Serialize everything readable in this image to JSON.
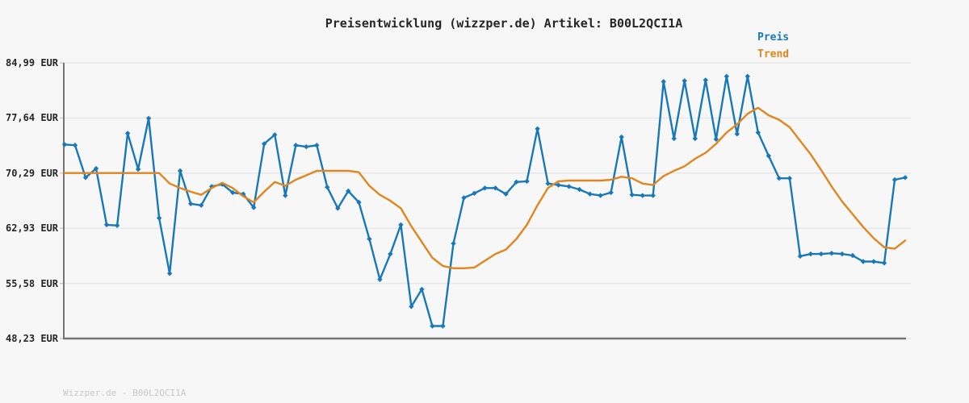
{
  "title": "Preisentwicklung (wizzper.de) Artikel: B00L2QCI1A",
  "footer": "Wizzper.de - B00L2QCI1A",
  "colors": {
    "background": "#f7f7f7",
    "grid": "#e8e8e8",
    "axis": "#757575",
    "tick": "#cccccc",
    "title_text": "#262626",
    "footer_text": "#c8c8c8",
    "preis_blue": "#1878b8",
    "trend_orange": "#e0861e"
  },
  "chart_data": {
    "type": "line",
    "title": "Preisentwicklung (wizzper.de) Artikel: B00L2QCI1A",
    "xlabel": "",
    "ylabel": "EUR",
    "ylim": [
      48.23,
      84.99
    ],
    "grid": "horizontal",
    "legend_position": "top-right",
    "x_axis_labels_visible": false,
    "y_ticks": [
      {
        "value": 84.99,
        "label": "84,99 EUR"
      },
      {
        "value": 77.64,
        "label": "77,64 EUR"
      },
      {
        "value": 70.29,
        "label": "70,29 EUR"
      },
      {
        "value": 62.93,
        "label": "62,93 EUR"
      },
      {
        "value": 55.58,
        "label": "55,58 EUR"
      },
      {
        "value": 48.23,
        "label": "48,23 EUR"
      }
    ],
    "series": [
      {
        "name": "Preis",
        "color": "#1878b8",
        "marker": "diamond",
        "values": [
          74.1,
          74.0,
          69.7,
          70.9,
          63.4,
          63.3,
          75.6,
          70.8,
          77.6,
          64.3,
          56.9,
          70.6,
          66.2,
          66.0,
          68.5,
          68.8,
          67.7,
          67.5,
          65.7,
          74.2,
          75.4,
          67.3,
          74.0,
          73.8,
          74.0,
          68.4,
          65.6,
          67.9,
          66.4,
          61.5,
          56.1,
          59.5,
          63.4,
          52.5,
          54.8,
          49.9,
          49.9,
          60.9,
          67.0,
          67.6,
          68.3,
          68.3,
          67.5,
          69.1,
          69.2,
          76.2,
          68.9,
          68.7,
          68.5,
          68.1,
          67.5,
          67.3,
          67.7,
          75.1,
          67.4,
          67.3,
          67.3,
          82.5,
          74.9,
          82.6,
          74.9,
          82.7,
          74.8,
          83.2,
          75.5,
          83.2,
          75.7,
          72.6,
          69.6,
          69.6,
          59.2,
          59.5,
          59.5,
          59.6,
          59.5,
          59.3,
          58.5,
          58.5,
          58.3,
          69.4,
          69.7
        ]
      },
      {
        "name": "Trend",
        "color": "#e0861e",
        "marker": "none",
        "values": [
          70.3,
          70.3,
          70.3,
          70.3,
          70.3,
          70.3,
          70.3,
          70.3,
          70.3,
          70.3,
          68.9,
          68.3,
          67.8,
          67.4,
          68.3,
          69.0,
          68.3,
          67.2,
          66.4,
          67.8,
          69.1,
          68.6,
          69.4,
          70.0,
          70.6,
          70.6,
          70.6,
          70.6,
          70.4,
          68.6,
          67.4,
          66.6,
          65.6,
          63.2,
          61.1,
          59.0,
          57.9,
          57.6,
          57.6,
          57.7,
          58.6,
          59.5,
          60.1,
          61.5,
          63.4,
          66.0,
          68.3,
          69.2,
          69.3,
          69.3,
          69.3,
          69.3,
          69.4,
          69.8,
          69.6,
          68.9,
          68.7,
          69.9,
          70.6,
          71.2,
          72.2,
          73.0,
          74.2,
          75.7,
          76.8,
          78.2,
          79.0,
          78.0,
          77.4,
          76.4,
          74.6,
          72.8,
          70.7,
          68.5,
          66.5,
          64.8,
          63.1,
          61.6,
          60.4,
          60.2,
          61.3
        ]
      }
    ]
  }
}
